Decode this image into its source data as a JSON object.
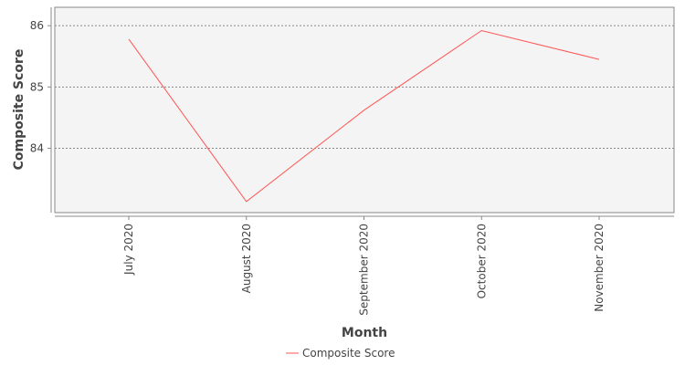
{
  "chart_data": {
    "type": "line",
    "categories": [
      "July 2020",
      "August 2020",
      "September 2020",
      "October 2020",
      "November 2020"
    ],
    "series": [
      {
        "name": "Composite Score",
        "values": [
          85.78,
          83.13,
          84.62,
          85.92,
          85.45
        ],
        "color": "#ff5555"
      }
    ],
    "xlabel": "Month",
    "ylabel": "Composite Score",
    "ylim": [
      82.95,
      86.3
    ],
    "yticks": [
      84,
      85,
      86
    ],
    "grid": true,
    "legend_position": "bottom-center",
    "plot_background": "#f4f4f4",
    "grid_color": "#888888"
  }
}
